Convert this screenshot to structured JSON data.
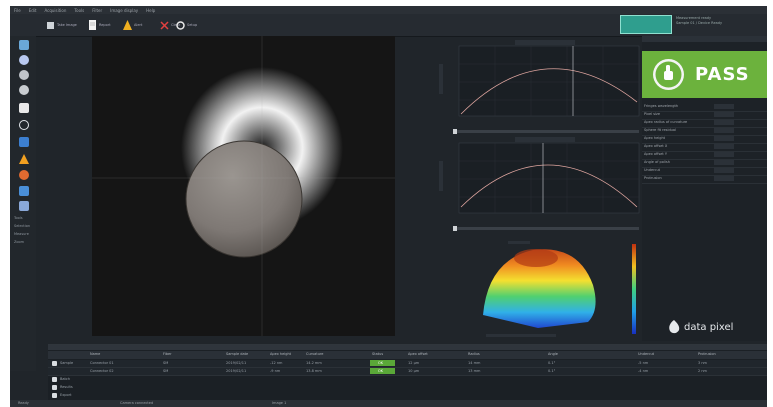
{
  "menu": {
    "items": [
      "File",
      "Edit",
      "Acquisition",
      "Tools",
      "Filter",
      "Image display",
      "Help"
    ]
  },
  "toolbar": {
    "buttons": [
      {
        "icon": "capture-icon",
        "label": "Take Image"
      },
      {
        "icon": "document-icon",
        "label": "Report"
      },
      {
        "icon": "warning-icon",
        "label": "Alert"
      },
      {
        "icon": "cross-icon",
        "label": "Clear"
      },
      {
        "icon": "gear-icon",
        "label": "Setup"
      }
    ],
    "status_title": "Measurement ready",
    "status_sub": "Sample 01 / Device Ready"
  },
  "left_tools": {
    "labels": [
      "Tools",
      "Selection",
      "Measure",
      "Zoom"
    ]
  },
  "result": {
    "status": "PASS",
    "colors": {
      "pass_green": "#6cb23d",
      "ok_green": "#5aa838",
      "accent_teal": "#2f9e8e"
    }
  },
  "right_panel": {
    "rows": [
      "Fringes wavelength",
      "Pixel size",
      "Apex radius of curvature",
      "Sphere fit residual",
      "Apex height",
      "Apex offset X",
      "Apex offset Y",
      "Angle of polish",
      "Undercut",
      "Protrusion"
    ]
  },
  "bottom": {
    "tree": [
      "Sample",
      "Batch",
      "Results",
      "Export"
    ],
    "headers": [
      "Name",
      "Fiber",
      "Sample date",
      "Apex height",
      "Curvature",
      "Status",
      "Apex offset",
      "Radius",
      "Angle",
      "Undercut",
      "Protrusion"
    ],
    "rows": [
      [
        "Connector 01",
        "SM",
        "2019/02/11",
        "-12 nm",
        "14.2 mm",
        "OK",
        "12 µm",
        "14 mm",
        "0.1°",
        "-5 nm",
        "3 nm"
      ],
      [
        "Connector 02",
        "SM",
        "2019/02/11",
        "-9 nm",
        "13.8 mm",
        "OK",
        "10 µm",
        "13 mm",
        "0.1°",
        "-4 nm",
        "2 nm"
      ]
    ]
  },
  "brand": {
    "logo_text": "data pixel"
  },
  "statusbar": {
    "items": [
      "Ready",
      "Camera connected",
      "Image 1"
    ]
  }
}
